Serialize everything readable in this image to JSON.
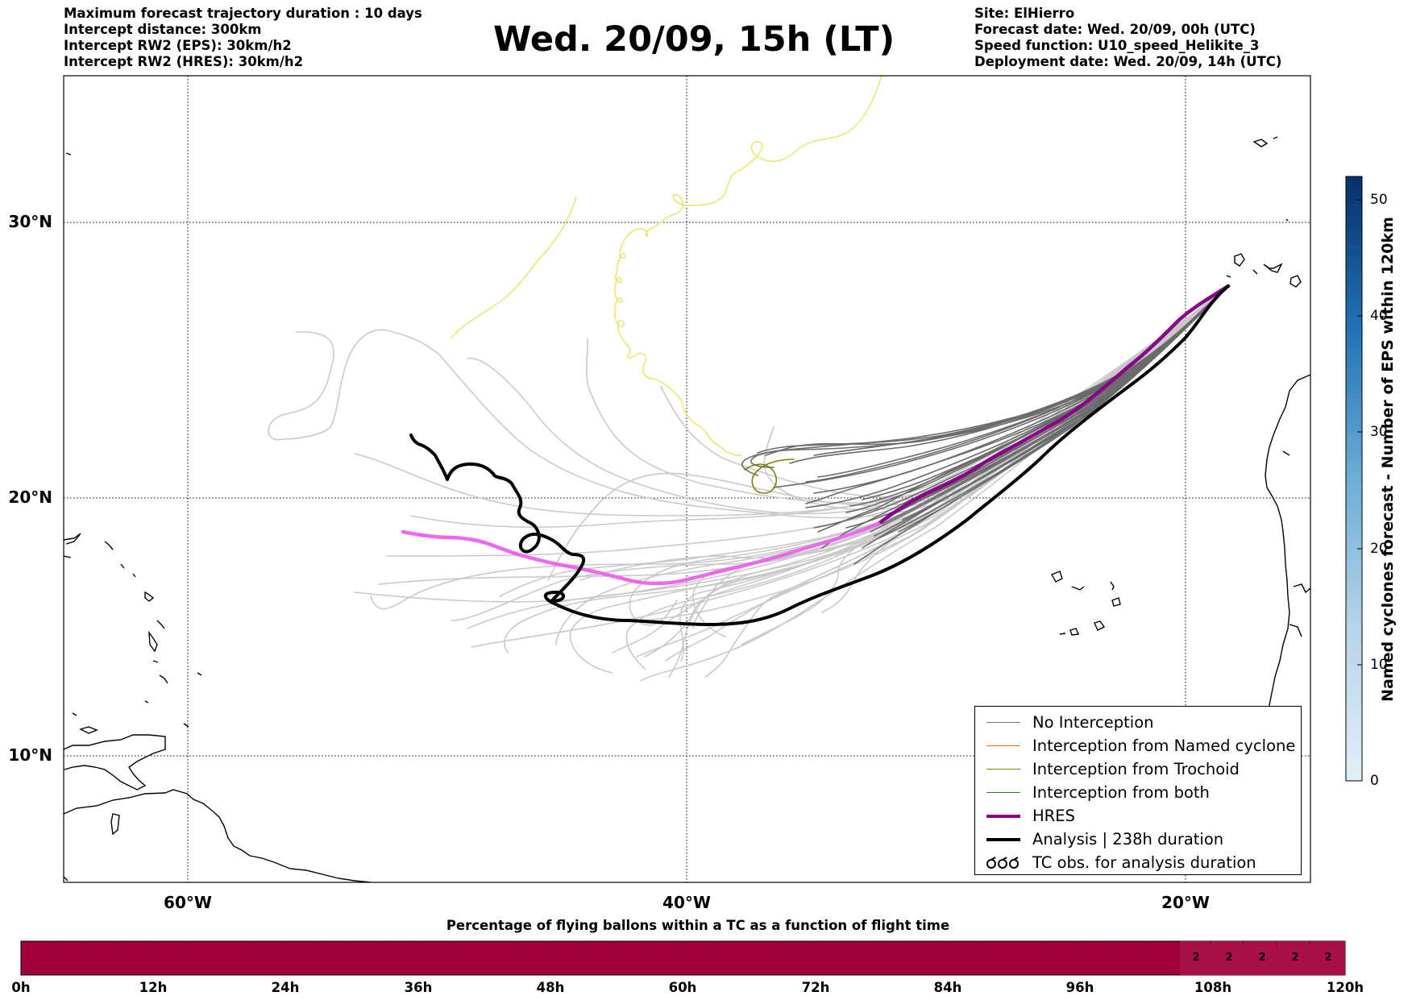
{
  "header_left": [
    "Maximum forecast trajectory duration : 10 days",
    "Intercept distance: 300km",
    "Intercept RW2 (EPS):  30km/h2",
    "Intercept RW2 (HRES): 30km/h2"
  ],
  "title": "Wed. 20/09, 15h (LT)",
  "header_right": [
    "Site: ElHierro",
    "Forecast date: Wed. 20/09, 00h (UTC)",
    "Speed function: U10_speed_Helikite_3",
    "Deployment date: Wed. 20/09, 14h (UTC)"
  ],
  "map": {
    "lat_labels": [
      "30°N",
      "20°N",
      "10°N"
    ],
    "lon_labels": [
      "60°W",
      "40°W",
      "20°W"
    ],
    "gridlines": true
  },
  "legend": {
    "items": [
      {
        "label": "No Interception",
        "color": "#777777",
        "style": "thin"
      },
      {
        "label": "Interception from Named cyclone",
        "color": "#ff6a1f",
        "style": "thin"
      },
      {
        "label": "Interception from Trochoid",
        "color": "#808000",
        "style": "thin"
      },
      {
        "label": "Interception from both",
        "color": "#228b22",
        "style": "thin"
      },
      {
        "label": "HRES",
        "color": "#8b008b",
        "style": "thick"
      },
      {
        "label": "Analysis | 238h duration",
        "color": "#000000",
        "style": "thick"
      },
      {
        "label": "TC obs. for analysis duration",
        "color": "#000000",
        "style": "loops"
      }
    ]
  },
  "colorbar": {
    "title": "Named cyclones forecast - Number of EPS within 120km",
    "ticks": [
      "0",
      "10",
      "20",
      "30",
      "40",
      "50"
    ],
    "min": 0,
    "max": 52,
    "color_low": "#e3eef9",
    "color_high": "#08306b"
  },
  "timebar": {
    "title": "Percentage of flying ballons within a TC as a function of flight time",
    "time_labels": [
      "0h",
      "12h",
      "24h",
      "36h",
      "48h",
      "60h",
      "72h",
      "84h",
      "96h",
      "108h",
      "120h"
    ],
    "bar_color": "#a0003c",
    "values_from_105h": [
      "2",
      "2",
      "2",
      "2",
      "2"
    ]
  }
}
